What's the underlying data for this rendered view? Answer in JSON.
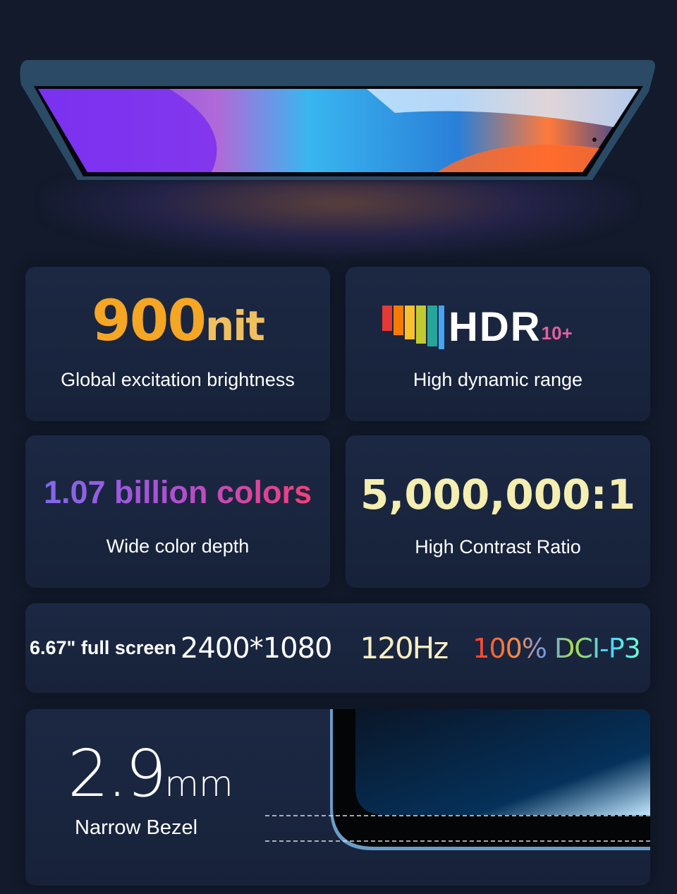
{
  "brightness": {
    "value": "900",
    "unit": "nit",
    "label": "Global excitation brightness"
  },
  "hdr": {
    "logo_text": "HDR10+",
    "label": "High dynamic range"
  },
  "colors": {
    "value": "1.07 billion colors",
    "label": "Wide color depth"
  },
  "contrast": {
    "value": "5,000,000:1",
    "label": "High Contrast Ratio"
  },
  "specs": {
    "size": "6.67\" full screen",
    "resolution": "2400*1080",
    "refresh": "120Hz",
    "gamut_pct": "100%",
    "gamut": "DCI-P3"
  },
  "bezel": {
    "value": "2.9",
    "unit": "mm",
    "label": "Narrow Bezel"
  }
}
